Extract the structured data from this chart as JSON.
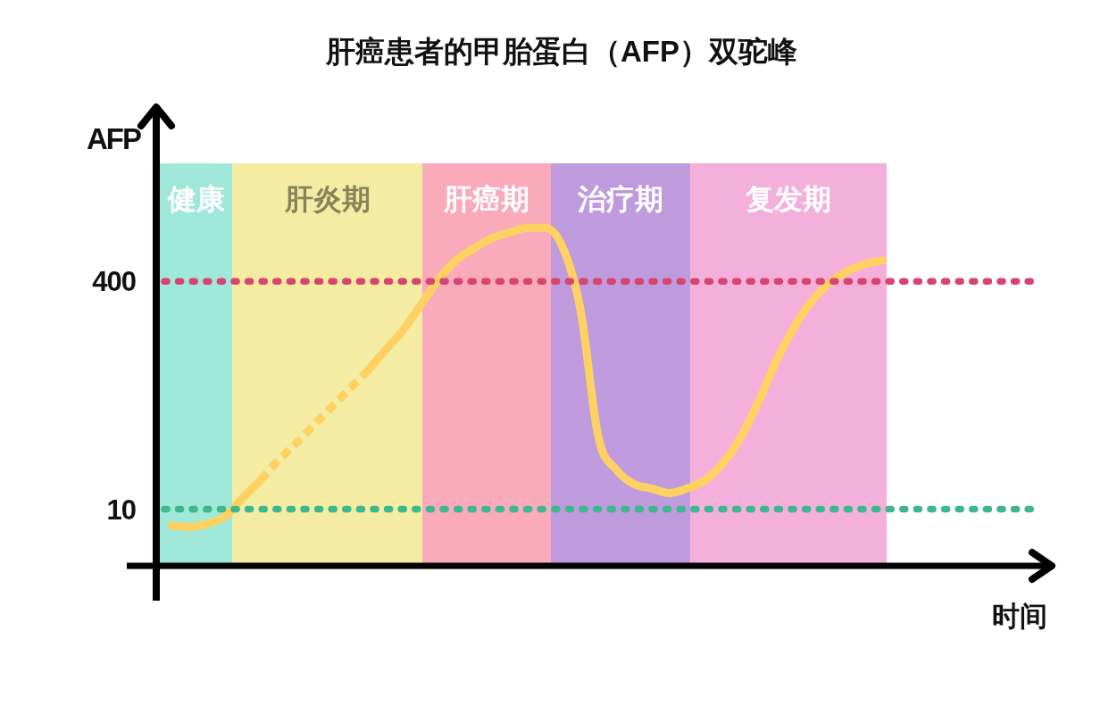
{
  "chart_data": {
    "type": "line",
    "title": "肝癌患者的甲胎蛋白（AFP）双驼峰",
    "xlabel": "时间",
    "ylabel": "AFP",
    "ylim": [
      4,
      7000
    ],
    "yticks": [
      10,
      400
    ],
    "log": true,
    "categories": [
      null,
      null,
      null,
      null,
      null,
      null,
      null,
      null,
      null,
      null,
      null,
      null,
      null,
      null,
      null,
      null,
      null,
      null,
      null,
      null,
      null,
      null,
      null,
      null,
      null,
      null,
      null,
      null,
      null,
      null,
      null,
      null,
      null,
      null,
      null,
      null,
      null,
      null,
      null,
      null,
      null
    ],
    "series": [
      {
        "color": "#fdd262",
        "line_style": "solid",
        "values": [
          7.7,
          7.5,
          7.9,
          8.9,
          12,
          16,
          null,
          null,
          null,
          null,
          null,
          null,
          null,
          null,
          null,
          null,
          null,
          null,
          null,
          null,
          null,
          null,
          null,
          null,
          null,
          null,
          null,
          null,
          null,
          null,
          null,
          null,
          null,
          null,
          null,
          null,
          null,
          null,
          null,
          null,
          null
        ]
      },
      {
        "color": "#fdd262",
        "line_style": "dashed",
        "values": [
          null,
          null,
          null,
          null,
          null,
          16,
          22,
          29,
          39,
          52,
          70,
          93,
          null,
          null,
          null,
          null,
          null,
          null,
          null,
          null,
          null,
          null,
          null,
          null,
          null,
          null,
          null,
          null,
          null,
          null,
          null,
          null,
          null,
          null,
          null,
          null,
          null,
          null,
          null,
          null,
          null
        ]
      },
      {
        "color": "#fdd262",
        "line_style": "solid",
        "values": [
          null,
          null,
          null,
          null,
          null,
          null,
          null,
          null,
          null,
          null,
          null,
          93,
          130,
          180,
          270,
          410,
          560,
          680,
          800,
          880,
          950,
          950,
          690,
          250,
          32,
          19,
          15,
          14,
          13,
          14,
          16,
          21,
          32,
          57,
          110,
          190,
          290,
          390,
          470,
          530,
          560
        ]
      }
    ],
    "annotations": [
      "健康",
      "肝炎期",
      "肝癌期",
      "治疗期",
      "复发期"
    ],
    "ref_lines": [
      {
        "axis": "y",
        "value": 400,
        "color": "#d6456f",
        "line_style": "dotted"
      },
      {
        "axis": "y",
        "value": 10,
        "color": "#3db88e",
        "line_style": "dotted"
      }
    ]
  }
}
